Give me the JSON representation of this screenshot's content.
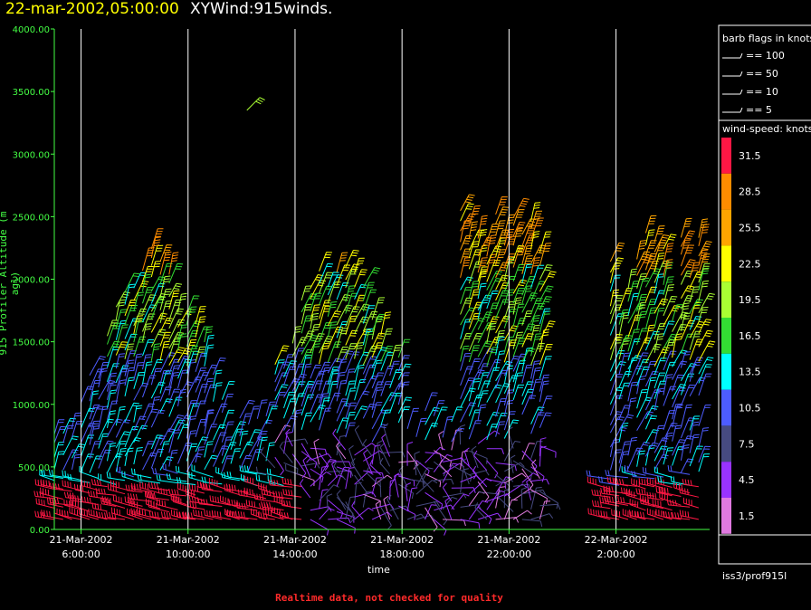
{
  "header": {
    "date": "22-mar-2002,05:00:00",
    "name": "XYWind:915winds."
  },
  "footer": {
    "note": "Realtime data, not checked for quality",
    "source": "iss3/prof915l"
  },
  "chart_data": {
    "type": "wind-barb",
    "title": "",
    "xlabel": "time",
    "ylabel": "915 Profiler Altitude (m agl)",
    "ylim": [
      0,
      4000
    ],
    "y_ticks": [
      "0.00",
      "500.00",
      "1000.00",
      "1500.00",
      "2000.00",
      "2500.00",
      "3000.00",
      "3500.00",
      "4000.00"
    ],
    "x_ticks": [
      {
        "date": "21-Mar-2002",
        "time": "6:00:00",
        "hour": 6
      },
      {
        "date": "21-Mar-2002",
        "time": "10:00:00",
        "hour": 10
      },
      {
        "date": "21-Mar-2002",
        "time": "14:00:00",
        "hour": 14
      },
      {
        "date": "21-Mar-2002",
        "time": "18:00:00",
        "hour": 18
      },
      {
        "date": "21-Mar-2002",
        "time": "22:00:00",
        "hour": 22
      },
      {
        "date": "22-Mar-2002",
        "time": "2:00:00",
        "hour": 26
      }
    ],
    "xlim_hours": [
      5.0,
      29.5
    ],
    "barb_legend": {
      "title": "barb flags in knots",
      "entries": [
        "== 100",
        "== 50",
        "== 10",
        "== 5"
      ]
    },
    "speed_legend": {
      "title": "wind-speed: knots",
      "bins": [
        {
          "label": "31.5",
          "color": "#ff1744"
        },
        {
          "label": "28.5",
          "color": "#ff8c00"
        },
        {
          "label": "25.5",
          "color": "#ffa500"
        },
        {
          "label": "22.5",
          "color": "#ffff00"
        },
        {
          "label": "19.5",
          "color": "#aaff33"
        },
        {
          "label": "16.5",
          "color": "#33dd33"
        },
        {
          "label": "13.5",
          "color": "#00ffff"
        },
        {
          "label": "10.5",
          "color": "#4d5cff"
        },
        {
          "label": "7.5",
          "color": "#464a80"
        },
        {
          "label": "4.5",
          "color": "#9933ff"
        },
        {
          "label": "1.5",
          "color": "#e07ae0"
        }
      ]
    },
    "colors": {
      "axis": "#44ff44",
      "grid": "#ffffff"
    }
  }
}
